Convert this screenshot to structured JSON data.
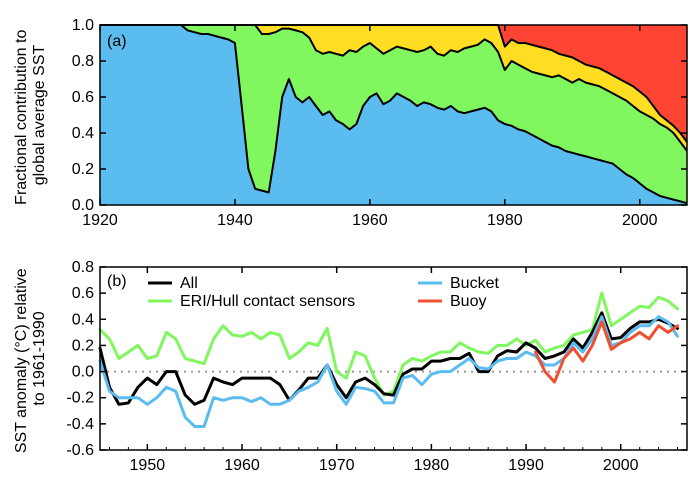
{
  "chart_data": [
    {
      "type": "area",
      "panel_label": "(a)",
      "title": "",
      "xlabel": "",
      "ylabel_lines": [
        "Fractional contribution to",
        "global average SST"
      ],
      "xlim": [
        1920,
        2007
      ],
      "ylim": [
        0,
        1
      ],
      "x_ticks": [
        "1920",
        "1940",
        "1960",
        "1980",
        "2000"
      ],
      "y_ticks": [
        "0.0",
        "0.2",
        "0.4",
        "0.6",
        "0.8",
        "1.0"
      ],
      "grid": false,
      "layers": [
        {
          "color": "#5bbcf0"
        },
        {
          "color": "#80f75e"
        },
        {
          "color": "#ffdd22"
        },
        {
          "color": "#ff4433"
        }
      ],
      "x": [
        1920,
        1932,
        1933,
        1934,
        1935,
        1936,
        1937,
        1938,
        1939,
        1940,
        1941,
        1942,
        1943,
        1944,
        1945,
        1946,
        1947,
        1948,
        1949,
        1950,
        1951,
        1952,
        1953,
        1954,
        1955,
        1956,
        1957,
        1958,
        1959,
        1960,
        1961,
        1962,
        1963,
        1964,
        1965,
        1966,
        1967,
        1968,
        1969,
        1970,
        1971,
        1972,
        1973,
        1974,
        1975,
        1976,
        1977,
        1978,
        1979,
        1980,
        1981,
        1982,
        1983,
        1984,
        1985,
        1986,
        1987,
        1988,
        1989,
        1990,
        1991,
        1992,
        1993,
        1994,
        1995,
        1996,
        1997,
        1998,
        1999,
        2000,
        2001,
        2002,
        2003,
        2004,
        2005,
        2006,
        2007
      ],
      "cum_bottom": [
        1.0,
        1.0,
        0.97,
        0.96,
        0.95,
        0.95,
        0.94,
        0.93,
        0.92,
        0.9,
        0.55,
        0.2,
        0.09,
        0.08,
        0.07,
        0.3,
        0.6,
        0.7,
        0.6,
        0.57,
        0.6,
        0.55,
        0.5,
        0.52,
        0.47,
        0.45,
        0.42,
        0.45,
        0.55,
        0.6,
        0.62,
        0.56,
        0.58,
        0.62,
        0.6,
        0.58,
        0.55,
        0.57,
        0.56,
        0.54,
        0.53,
        0.55,
        0.52,
        0.51,
        0.52,
        0.53,
        0.54,
        0.52,
        0.47,
        0.45,
        0.44,
        0.42,
        0.41,
        0.39,
        0.37,
        0.35,
        0.33,
        0.32,
        0.3,
        0.29,
        0.28,
        0.27,
        0.26,
        0.25,
        0.24,
        0.23,
        0.2,
        0.17,
        0.15,
        0.12,
        0.09,
        0.07,
        0.05,
        0.04,
        0.03,
        0.02,
        0.01
      ],
      "cum_middle": [
        1.0,
        1.0,
        1.0,
        1.0,
        1.0,
        1.0,
        1.0,
        1.0,
        1.0,
        1.0,
        1.0,
        1.0,
        1.0,
        0.95,
        0.95,
        0.96,
        0.98,
        0.98,
        0.97,
        0.96,
        0.93,
        0.86,
        0.84,
        0.85,
        0.84,
        0.83,
        0.86,
        0.85,
        0.88,
        0.9,
        0.87,
        0.84,
        0.86,
        0.88,
        0.87,
        0.86,
        0.85,
        0.86,
        0.88,
        0.84,
        0.83,
        0.86,
        0.85,
        0.87,
        0.88,
        0.89,
        0.92,
        0.9,
        0.85,
        0.75,
        0.8,
        0.78,
        0.76,
        0.74,
        0.73,
        0.72,
        0.71,
        0.72,
        0.7,
        0.68,
        0.7,
        0.68,
        0.67,
        0.66,
        0.64,
        0.62,
        0.6,
        0.58,
        0.55,
        0.52,
        0.5,
        0.48,
        0.45,
        0.43,
        0.4,
        0.35,
        0.3
      ],
      "cum_upper": [
        1.0,
        1.0,
        1.0,
        1.0,
        1.0,
        1.0,
        1.0,
        1.0,
        1.0,
        1.0,
        1.0,
        1.0,
        1.0,
        1.0,
        1.0,
        1.0,
        1.0,
        1.0,
        1.0,
        1.0,
        1.0,
        1.0,
        1.0,
        1.0,
        1.0,
        1.0,
        1.0,
        1.0,
        1.0,
        1.0,
        1.0,
        1.0,
        1.0,
        1.0,
        1.0,
        1.0,
        1.0,
        1.0,
        1.0,
        1.0,
        1.0,
        1.0,
        1.0,
        1.0,
        1.0,
        1.0,
        1.0,
        1.0,
        1.0,
        0.88,
        0.92,
        0.9,
        0.9,
        0.89,
        0.88,
        0.87,
        0.86,
        0.84,
        0.83,
        0.82,
        0.8,
        0.78,
        0.77,
        0.76,
        0.74,
        0.72,
        0.7,
        0.68,
        0.66,
        0.63,
        0.6,
        0.55,
        0.5,
        0.47,
        0.44,
        0.4,
        0.35
      ]
    },
    {
      "type": "line",
      "panel_label": "(b)",
      "title": "",
      "xlabel": "",
      "ylabel_lines": [
        "SST anomaly (°C) relative",
        "to 1961-1990"
      ],
      "xlim": [
        1945,
        2007
      ],
      "ylim": [
        -0.6,
        0.8
      ],
      "x_ticks": [
        "1950",
        "1960",
        "1970",
        "1980",
        "1990",
        "2000"
      ],
      "y_ticks": [
        "-0.6",
        "-0.4",
        "-0.2",
        "0.0",
        "0.2",
        "0.4",
        "0.6",
        "0.8"
      ],
      "grid": false,
      "zero_line": true,
      "legend_placement": "top",
      "series": [
        {
          "name": "ERI/Hull contact sensors",
          "color": "#80f75e",
          "x": [
            1945,
            1946,
            1947,
            1948,
            1949,
            1950,
            1951,
            1952,
            1953,
            1954,
            1955,
            1956,
            1957,
            1958,
            1959,
            1960,
            1961,
            1962,
            1963,
            1964,
            1965,
            1966,
            1967,
            1968,
            1969,
            1970,
            1971,
            1972,
            1973,
            1974,
            1975,
            1976,
            1977,
            1978,
            1979,
            1980,
            1981,
            1982,
            1983,
            1984,
            1985,
            1986,
            1987,
            1988,
            1989,
            1990,
            1991,
            1992,
            1993,
            1994,
            1995,
            1996,
            1997,
            1998,
            1999,
            2000,
            2001,
            2002,
            2003,
            2004,
            2005,
            2006
          ],
          "y": [
            0.32,
            0.25,
            0.1,
            0.15,
            0.2,
            0.1,
            0.12,
            0.3,
            0.25,
            0.1,
            0.08,
            0.06,
            0.25,
            0.35,
            0.28,
            0.27,
            0.3,
            0.25,
            0.3,
            0.28,
            0.1,
            0.15,
            0.22,
            0.2,
            0.33,
            0.0,
            -0.05,
            0.15,
            0.12,
            -0.05,
            -0.18,
            -0.15,
            0.05,
            0.1,
            0.08,
            0.12,
            0.15,
            0.15,
            0.22,
            0.18,
            0.15,
            0.14,
            0.2,
            0.2,
            0.25,
            0.2,
            0.24,
            0.15,
            0.18,
            0.2,
            0.28,
            0.3,
            0.32,
            0.6,
            0.35,
            0.4,
            0.45,
            0.5,
            0.49,
            0.57,
            0.54,
            0.48
          ]
        },
        {
          "name": "All",
          "color": "#000000",
          "x": [
            1945,
            1946,
            1947,
            1948,
            1949,
            1950,
            1951,
            1952,
            1953,
            1954,
            1955,
            1956,
            1957,
            1958,
            1959,
            1960,
            1961,
            1962,
            1963,
            1964,
            1965,
            1966,
            1967,
            1968,
            1969,
            1970,
            1971,
            1972,
            1973,
            1974,
            1975,
            1976,
            1977,
            1978,
            1979,
            1980,
            1981,
            1982,
            1983,
            1984,
            1985,
            1986,
            1987,
            1988,
            1989,
            1990,
            1991,
            1992,
            1993,
            1994,
            1995,
            1996,
            1997,
            1998,
            1999,
            2000,
            2001,
            2002,
            2003,
            2004,
            2005,
            2006
          ],
          "y": [
            0.18,
            -0.12,
            -0.25,
            -0.24,
            -0.12,
            -0.05,
            -0.1,
            0.0,
            0.0,
            -0.18,
            -0.25,
            -0.22,
            -0.05,
            -0.08,
            -0.1,
            -0.05,
            -0.05,
            -0.05,
            -0.05,
            -0.1,
            -0.22,
            -0.14,
            -0.05,
            -0.05,
            0.05,
            -0.1,
            -0.2,
            -0.08,
            -0.05,
            -0.1,
            -0.17,
            -0.18,
            -0.02,
            0.02,
            0.02,
            0.08,
            0.08,
            0.1,
            0.1,
            0.14,
            0.0,
            0.0,
            0.12,
            0.16,
            0.15,
            0.22,
            0.18,
            0.1,
            0.12,
            0.15,
            0.25,
            0.18,
            0.3,
            0.45,
            0.25,
            0.26,
            0.33,
            0.38,
            0.38,
            0.4,
            0.37,
            0.33
          ]
        },
        {
          "name": "Bucket",
          "color": "#5bbcf0",
          "x": [
            1945,
            1946,
            1947,
            1948,
            1949,
            1950,
            1951,
            1952,
            1953,
            1954,
            1955,
            1956,
            1957,
            1958,
            1959,
            1960,
            1961,
            1962,
            1963,
            1964,
            1965,
            1966,
            1967,
            1968,
            1969,
            1970,
            1971,
            1972,
            1973,
            1974,
            1975,
            1976,
            1977,
            1978,
            1979,
            1980,
            1981,
            1982,
            1983,
            1984,
            1985,
            1986,
            1987,
            1988,
            1989,
            1990,
            1991,
            1992,
            1993,
            1994,
            1995,
            1996,
            1997,
            1998,
            1999,
            2000,
            2001,
            2002,
            2003,
            2004,
            2005,
            2006
          ],
          "y": [
            0.08,
            -0.15,
            -0.2,
            -0.2,
            -0.2,
            -0.25,
            -0.2,
            -0.12,
            -0.15,
            -0.35,
            -0.42,
            -0.42,
            -0.2,
            -0.22,
            -0.2,
            -0.2,
            -0.23,
            -0.2,
            -0.25,
            -0.25,
            -0.22,
            -0.15,
            -0.12,
            -0.08,
            0.05,
            -0.15,
            -0.25,
            -0.12,
            -0.13,
            -0.15,
            -0.24,
            -0.24,
            -0.05,
            -0.03,
            -0.1,
            -0.02,
            0.0,
            0.0,
            0.05,
            0.1,
            0.03,
            0.02,
            0.08,
            0.1,
            0.1,
            0.15,
            0.12,
            0.05,
            0.05,
            0.1,
            0.22,
            0.15,
            0.25,
            0.42,
            0.2,
            0.22,
            0.3,
            0.35,
            0.35,
            0.42,
            0.38,
            0.27
          ]
        },
        {
          "name": "Buoy",
          "color": "#f05030",
          "x": [
            1991,
            1992,
            1993,
            1994,
            1995,
            1996,
            1997,
            1998,
            1999,
            2000,
            2001,
            2002,
            2003,
            2004,
            2005,
            2006
          ],
          "y": [
            0.15,
            0.0,
            -0.08,
            0.1,
            0.18,
            0.08,
            0.2,
            0.38,
            0.17,
            0.22,
            0.25,
            0.3,
            0.25,
            0.35,
            0.3,
            0.35
          ]
        }
      ]
    }
  ]
}
